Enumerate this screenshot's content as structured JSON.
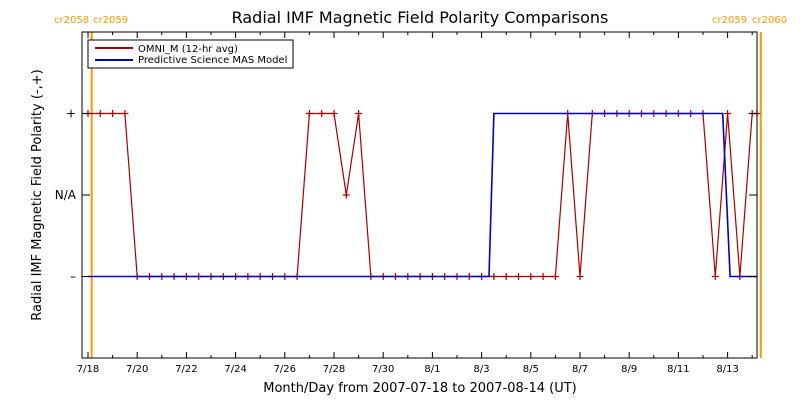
{
  "chart_data": {
    "type": "line",
    "title": "Radial IMF Magnetic Field Polarity Comparisons",
    "xlabel": "Month/Day from 2007-07-18 to 2007-08-14 (UT)",
    "ylabel": "Radial IMF Magnetic Field Polarity (-,+)",
    "x_unit": "days after 2007-07-18 00:00 UT",
    "xlim": [
      0,
      27.5
    ],
    "ylim": [
      -2,
      2
    ],
    "x_tick_labels": [
      "7/18",
      "7/20",
      "7/22",
      "7/24",
      "7/26",
      "7/28",
      "7/30",
      "8/1",
      "8/3",
      "8/5",
      "8/7",
      "8/9",
      "8/11",
      "8/13"
    ],
    "y_ticks": [
      {
        "value": 1,
        "label": "+"
      },
      {
        "value": 0,
        "label": "N/A"
      },
      {
        "value": -1,
        "label": "–"
      }
    ],
    "carrington_markers": [
      {
        "x": 0.15,
        "left_label": "cr2058",
        "right_label": "cr2059"
      },
      {
        "x": 27.35,
        "left_label": "cr2059",
        "right_label": "cr2060"
      }
    ],
    "legend": {
      "position": "top-left",
      "entries": [
        "OMNI_M (12-hr avg)",
        "Predictive Science MAS Model"
      ]
    },
    "colors": {
      "omni": "#aa0000",
      "model": "#0000cc",
      "carrington": "#ff9900"
    },
    "series": [
      {
        "name": "OMNI_M (12-hr avg)",
        "style": "line-with-plus-markers",
        "x": [
          0.0,
          0.5,
          1.0,
          1.5,
          2.0,
          2.5,
          3.0,
          3.5,
          4.0,
          4.5,
          5.0,
          5.5,
          6.0,
          6.5,
          7.0,
          7.5,
          8.0,
          8.5,
          9.0,
          9.5,
          10.0,
          10.5,
          11.0,
          11.5,
          12.0,
          12.5,
          13.0,
          13.5,
          14.0,
          14.5,
          15.0,
          15.5,
          16.0,
          16.5,
          17.0,
          17.5,
          18.0,
          18.5,
          19.0,
          19.5,
          20.0,
          20.5,
          21.0,
          21.5,
          22.0,
          22.5,
          23.0,
          23.5,
          24.0,
          24.5,
          25.0,
          25.5,
          26.0,
          26.5,
          27.0,
          27.5
        ],
        "y": [
          1,
          1,
          1,
          1,
          -1,
          -1,
          -1,
          -1,
          -1,
          -1,
          -1,
          -1,
          -1,
          -1,
          -1,
          -1,
          -1,
          -1,
          1,
          1,
          1,
          0,
          1,
          -1,
          -1,
          -1,
          -1,
          -1,
          -1,
          -1,
          -1,
          -1,
          -1,
          -1,
          -1,
          -1,
          -1,
          -1,
          -1,
          1,
          -1,
          1,
          1,
          1,
          1,
          1,
          1,
          1,
          1,
          1,
          1,
          -1,
          1,
          -1,
          1,
          1
        ]
      },
      {
        "name": "Predictive Science MAS Model",
        "style": "step",
        "x": [
          0.0,
          16.3,
          16.5,
          25.8,
          26.1,
          27.4
        ],
        "y": [
          -1,
          -1,
          1,
          1,
          -1,
          -1
        ]
      }
    ]
  }
}
